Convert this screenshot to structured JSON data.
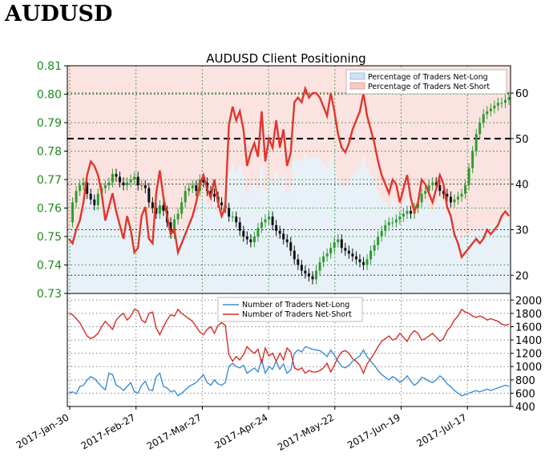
{
  "heading": "AUDUSD",
  "chart_data": {
    "title": "AUDUSD Client Positioning",
    "xlabel": "",
    "x_ticks": [
      "2017-Jan-30",
      "2017-Feb-27",
      "2017-Mar-27",
      "2017-Apr-24",
      "2017-May-22",
      "2017-Jun-19",
      "2017-Jul-17"
    ],
    "price_panel": {
      "type": "candlestick + line",
      "price_axis": {
        "side": "left",
        "ylim": [
          0.73,
          0.81
        ],
        "ticks": [
          "0.81",
          "0.80",
          "0.79",
          "0.78",
          "0.77",
          "0.76",
          "0.75",
          "0.74",
          "0.73"
        ]
      },
      "pct_axis": {
        "side": "right",
        "ylim": [
          16,
          66
        ],
        "ticks": [
          "60",
          "50",
          "40",
          "30",
          "20"
        ]
      },
      "reference_line": {
        "value": 50,
        "style": "dashed"
      },
      "legend": [
        "Percentage of Traders Net-Long",
        "Percentage of Traders Net-Short"
      ],
      "price_close": [
        0.755,
        0.762,
        0.766,
        0.768,
        0.769,
        0.765,
        0.763,
        0.761,
        0.765,
        0.767,
        0.768,
        0.769,
        0.772,
        0.771,
        0.769,
        0.768,
        0.769,
        0.77,
        0.771,
        0.768,
        0.768,
        0.767,
        0.762,
        0.76,
        0.758,
        0.761,
        0.759,
        0.755,
        0.751,
        0.756,
        0.758,
        0.762,
        0.766,
        0.767,
        0.768,
        0.766,
        0.77,
        0.769,
        0.766,
        0.765,
        0.764,
        0.762,
        0.761,
        0.76,
        0.757,
        0.757,
        0.755,
        0.752,
        0.75,
        0.749,
        0.748,
        0.75,
        0.753,
        0.755,
        0.756,
        0.757,
        0.754,
        0.752,
        0.751,
        0.749,
        0.748,
        0.745,
        0.742,
        0.74,
        0.738,
        0.737,
        0.736,
        0.735,
        0.738,
        0.741,
        0.743,
        0.744,
        0.746,
        0.748,
        0.749,
        0.746,
        0.745,
        0.744,
        0.743,
        0.742,
        0.741,
        0.74,
        0.742,
        0.745,
        0.747,
        0.75,
        0.752,
        0.754,
        0.755,
        0.755,
        0.756,
        0.757,
        0.758,
        0.759,
        0.758,
        0.76,
        0.762,
        0.765,
        0.766,
        0.768,
        0.769,
        0.768,
        0.766,
        0.765,
        0.764,
        0.762,
        0.763,
        0.764,
        0.765,
        0.768,
        0.774,
        0.78,
        0.786,
        0.79,
        0.793,
        0.794,
        0.795,
        0.796,
        0.797,
        0.797,
        0.798,
        0.799
      ],
      "pct_net_long": [
        28,
        27,
        30,
        32,
        36,
        42,
        45,
        44,
        42,
        38,
        32,
        35,
        38,
        34,
        31,
        28,
        33,
        30,
        25,
        26,
        33,
        35,
        28,
        27,
        38,
        43,
        37,
        33,
        29,
        30,
        25,
        27,
        29,
        31,
        33,
        36,
        40,
        42,
        39,
        37,
        41,
        36,
        33,
        35,
        53,
        57,
        54,
        56,
        52,
        44,
        47,
        49,
        46,
        56,
        45,
        50,
        48,
        54,
        48,
        52,
        44,
        47,
        58,
        59,
        58,
        61,
        59,
        60,
        60,
        59,
        57,
        55,
        60,
        56,
        51,
        48,
        47,
        49,
        52,
        54,
        56,
        60,
        55,
        52,
        49,
        45,
        42,
        40,
        38,
        41,
        40,
        36,
        39,
        42,
        37,
        34,
        36,
        41,
        40,
        38,
        36,
        39,
        42,
        40,
        35,
        33,
        29,
        27,
        24,
        25,
        26,
        27,
        28,
        27,
        28,
        30,
        29,
        30,
        31,
        33,
        34,
        33
      ],
      "pct_net_short": [
        72,
        73,
        70,
        68,
        64,
        58,
        55,
        56,
        58,
        62,
        68,
        65,
        62,
        66,
        69,
        72,
        67,
        70,
        75,
        74,
        67,
        65,
        72,
        73,
        62,
        57,
        63,
        67,
        71,
        70,
        75,
        73,
        71,
        69,
        67,
        64,
        60,
        58,
        61,
        63,
        59,
        64,
        67,
        65,
        47,
        43,
        46,
        44,
        48,
        56,
        53,
        51,
        54,
        44,
        55,
        50,
        52,
        46,
        52,
        48,
        56,
        53,
        42,
        41,
        42,
        39,
        41,
        40,
        40,
        41,
        43,
        45,
        40,
        44,
        49,
        52,
        53,
        51,
        48,
        46,
        44,
        40,
        45,
        48,
        51,
        55,
        58,
        60,
        62,
        59,
        60,
        64,
        61,
        58,
        63,
        66,
        64,
        59,
        60,
        62,
        64,
        61,
        58,
        60,
        65,
        67,
        71,
        73,
        76,
        75,
        74,
        73,
        72,
        73,
        72,
        70,
        71,
        70,
        69,
        67,
        66,
        67
      ]
    },
    "traders_panel": {
      "type": "line",
      "ylim": [
        400,
        2100
      ],
      "y_ticks": [
        "2000",
        "1800",
        "1600",
        "1400",
        "1200",
        "1000",
        "800",
        "600",
        "400"
      ],
      "legend": [
        "Number of Traders Net-Long",
        "Number of Traders Net-Short"
      ],
      "series": [
        {
          "name": "Number of Traders Net-Long",
          "color": "#3a8fd6",
          "values": [
            600,
            620,
            590,
            700,
            720,
            800,
            850,
            820,
            760,
            700,
            650,
            900,
            880,
            720,
            690,
            640,
            700,
            760,
            620,
            600,
            720,
            780,
            650,
            640,
            850,
            900,
            700,
            680,
            620,
            640,
            560,
            600,
            650,
            700,
            730,
            760,
            820,
            880,
            760,
            720,
            800,
            740,
            720,
            760,
            1000,
            1050,
            1000,
            980,
            1020,
            900,
            940,
            980,
            920,
            1100,
            900,
            1000,
            960,
            1080,
            960,
            1040,
            900,
            950,
            1200,
            1250,
            1220,
            1300,
            1280,
            1260,
            1250,
            1240,
            1200,
            1150,
            1250,
            1170,
            1080,
            1000,
            980,
            1020,
            1080,
            1120,
            1160,
            1250,
            1150,
            1080,
            1020,
            940,
            880,
            840,
            800,
            850,
            820,
            760,
            800,
            860,
            780,
            720,
            760,
            840,
            820,
            780,
            760,
            800,
            860,
            820,
            740,
            700,
            640,
            600,
            560,
            580,
            600,
            620,
            640,
            620,
            640,
            660,
            640,
            660,
            680,
            700,
            720,
            700
          ]
        },
        {
          "name": "Number of Traders Net-Short",
          "color": "#d62e26",
          "values": [
            1800,
            1780,
            1720,
            1660,
            1560,
            1460,
            1420,
            1450,
            1500,
            1600,
            1680,
            1620,
            1560,
            1700,
            1760,
            1800,
            1700,
            1760,
            1860,
            1840,
            1700,
            1660,
            1800,
            1820,
            1580,
            1480,
            1600,
            1700,
            1780,
            1760,
            1860,
            1800,
            1760,
            1720,
            1680,
            1600,
            1520,
            1480,
            1560,
            1600,
            1500,
            1620,
            1660,
            1620,
            1180,
            1080,
            1150,
            1100,
            1180,
            1300,
            1240,
            1200,
            1260,
            1050,
            1280,
            1160,
            1200,
            1080,
            1200,
            1100,
            1280,
            1220,
            980,
            950,
            980,
            900,
            940,
            920,
            920,
            940,
            980,
            1050,
            920,
            1020,
            1140,
            1220,
            1240,
            1200,
            1120,
            1080,
            1020,
            900,
            1040,
            1120,
            1200,
            1300,
            1380,
            1420,
            1460,
            1400,
            1420,
            1500,
            1440,
            1380,
            1480,
            1540,
            1500,
            1400,
            1420,
            1460,
            1500,
            1440,
            1380,
            1420,
            1540,
            1600,
            1700,
            1760,
            1860,
            1820,
            1800,
            1760,
            1740,
            1760,
            1740,
            1700,
            1720,
            1700,
            1680,
            1640,
            1620,
            1640
          ]
        }
      ]
    }
  }
}
